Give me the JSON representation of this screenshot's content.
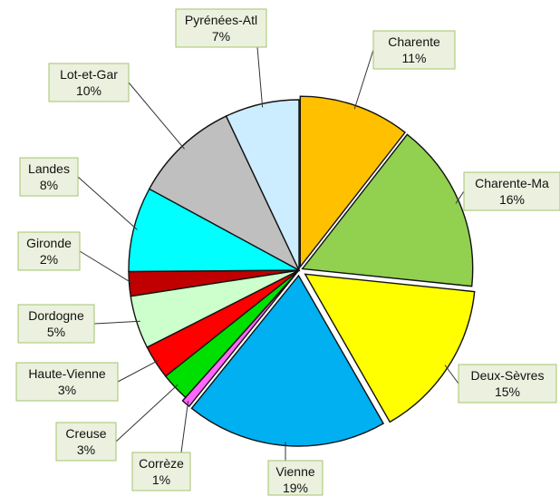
{
  "chart_data": {
    "type": "pie",
    "slices": [
      {
        "label": "Charente",
        "value_text": "11%",
        "value": 10.5,
        "color": "#ffc000"
      },
      {
        "label": "Charente-Ma",
        "value_text": "16%",
        "value": 16.0,
        "color": "#92d050"
      },
      {
        "label": "Deux-Sèvres",
        "value_text": "15%",
        "value": 15.0,
        "color": "#ffff00"
      },
      {
        "label": "Vienne",
        "value_text": "19%",
        "value": 19.0,
        "color": "#00b0f0"
      },
      {
        "label": "Corrèze",
        "value_text": "1%",
        "value": 0.8,
        "color": "#ff66ff"
      },
      {
        "label": "Creuse",
        "value_text": "3%",
        "value": 2.7,
        "color": "#00e000"
      },
      {
        "label": "Haute-Vienne",
        "value_text": "3%",
        "value": 3.2,
        "color": "#ff0000"
      },
      {
        "label": "Dordogne",
        "value_text": "5%",
        "value": 5.0,
        "color": "#ccffcc"
      },
      {
        "label": "Gironde",
        "value_text": "2%",
        "value": 2.3,
        "color": "#c00000"
      },
      {
        "label": "Landes",
        "value_text": "8%",
        "value": 8.0,
        "color": "#00ffff"
      },
      {
        "label": "Lot-et-Gar",
        "value_text": "10%",
        "value": 10.0,
        "color": "#bfbfbf"
      },
      {
        "label": "Pyrénées-Atl",
        "value_text": "7%",
        "value": 7.0,
        "color": "#ccecff"
      }
    ]
  }
}
